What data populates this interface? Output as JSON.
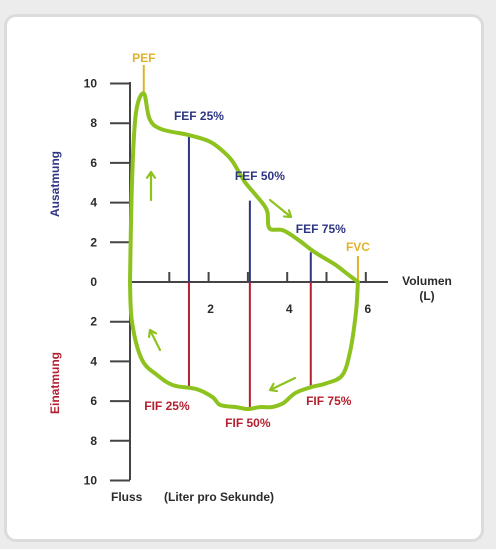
{
  "chart_data": {
    "type": "line",
    "x_axis": {
      "label": "Volumen",
      "unit": "(L)",
      "range": [
        0,
        6
      ],
      "ticks": [
        {
          "v": 2,
          "label": "2"
        },
        {
          "v": 4,
          "label": "4"
        },
        {
          "v": 6,
          "label": "6"
        }
      ],
      "minor_ticks": [
        1,
        3,
        5
      ]
    },
    "y_axis": {
      "upper_label": "Ausatmung",
      "lower_label": "Einatmung",
      "range": [
        -10,
        10
      ],
      "ticks": [
        {
          "v": 10,
          "label": "10"
        },
        {
          "v": 8,
          "label": "8"
        },
        {
          "v": 6,
          "label": "6"
        },
        {
          "v": 4,
          "label": "4"
        },
        {
          "v": 2,
          "label": "2"
        },
        {
          "v": 0,
          "label": "0"
        },
        {
          "v": -2,
          "label": "2"
        },
        {
          "v": -4,
          "label": "4"
        },
        {
          "v": -6,
          "label": "6"
        },
        {
          "v": -8,
          "label": "8"
        },
        {
          "v": -10,
          "label": "10"
        }
      ]
    },
    "footer": {
      "flow": "Fluss",
      "unit": "(Liter pro Sekunde)"
    },
    "expiration_curve": [
      [
        0,
        0
      ],
      [
        0.05,
        5
      ],
      [
        0.15,
        8.5
      ],
      [
        0.35,
        9.5
      ],
      [
        0.5,
        8.2
      ],
      [
        0.8,
        7.7
      ],
      [
        1.5,
        7.4
      ],
      [
        2.0,
        7.1
      ],
      [
        2.3,
        6.7
      ],
      [
        2.6,
        6.1
      ],
      [
        2.9,
        5.1
      ],
      [
        3.15,
        4.5
      ],
      [
        3.4,
        3.9
      ],
      [
        3.5,
        3.5
      ],
      [
        3.55,
        2.7
      ],
      [
        3.9,
        2.6
      ],
      [
        4.3,
        2.1
      ],
      [
        4.7,
        1.5
      ],
      [
        5.2,
        0.9
      ],
      [
        5.6,
        0.3
      ],
      [
        5.8,
        0
      ]
    ],
    "inspiration_curve": [
      [
        0,
        0
      ],
      [
        0.05,
        -2
      ],
      [
        0.3,
        -3.9
      ],
      [
        0.7,
        -4.7
      ],
      [
        1.1,
        -5.2
      ],
      [
        1.7,
        -5.4
      ],
      [
        2.1,
        -5.8
      ],
      [
        2.3,
        -6.2
      ],
      [
        2.7,
        -6.3
      ],
      [
        3.0,
        -6.4
      ],
      [
        3.3,
        -6.3
      ],
      [
        3.6,
        -6.3
      ],
      [
        3.9,
        -6.1
      ],
      [
        4.2,
        -5.6
      ],
      [
        4.6,
        -5.3
      ],
      [
        5.0,
        -5.1
      ],
      [
        5.4,
        -4.7
      ],
      [
        5.6,
        -3.5
      ],
      [
        5.75,
        -1.5
      ],
      [
        5.8,
        0
      ]
    ],
    "markers": [
      {
        "x": 1.5,
        "y_top": 7.4,
        "y_bottom": -5.4,
        "top_label": "FEF 25%",
        "bottom_label": "FIF 25%"
      },
      {
        "x": 3.05,
        "y_top": 4.1,
        "y_bottom": -6.4,
        "top_label": "FEF 50%",
        "bottom_label": "FIF 50%"
      },
      {
        "x": 4.6,
        "y_top": 1.5,
        "y_bottom": -5.3,
        "top_label": "FEF 75%",
        "bottom_label": "FIF 75%"
      }
    ],
    "pef": {
      "x": 0.35,
      "y": 9.5,
      "label": "PEF"
    },
    "fvc": {
      "x": 5.8,
      "y": 0,
      "label": "FVC"
    },
    "colors": {
      "curve": "#8dc21f",
      "expiration": "#2e3582",
      "inspiration": "#b3202f",
      "peak": "#e0b12a",
      "axis": "#444444"
    }
  }
}
